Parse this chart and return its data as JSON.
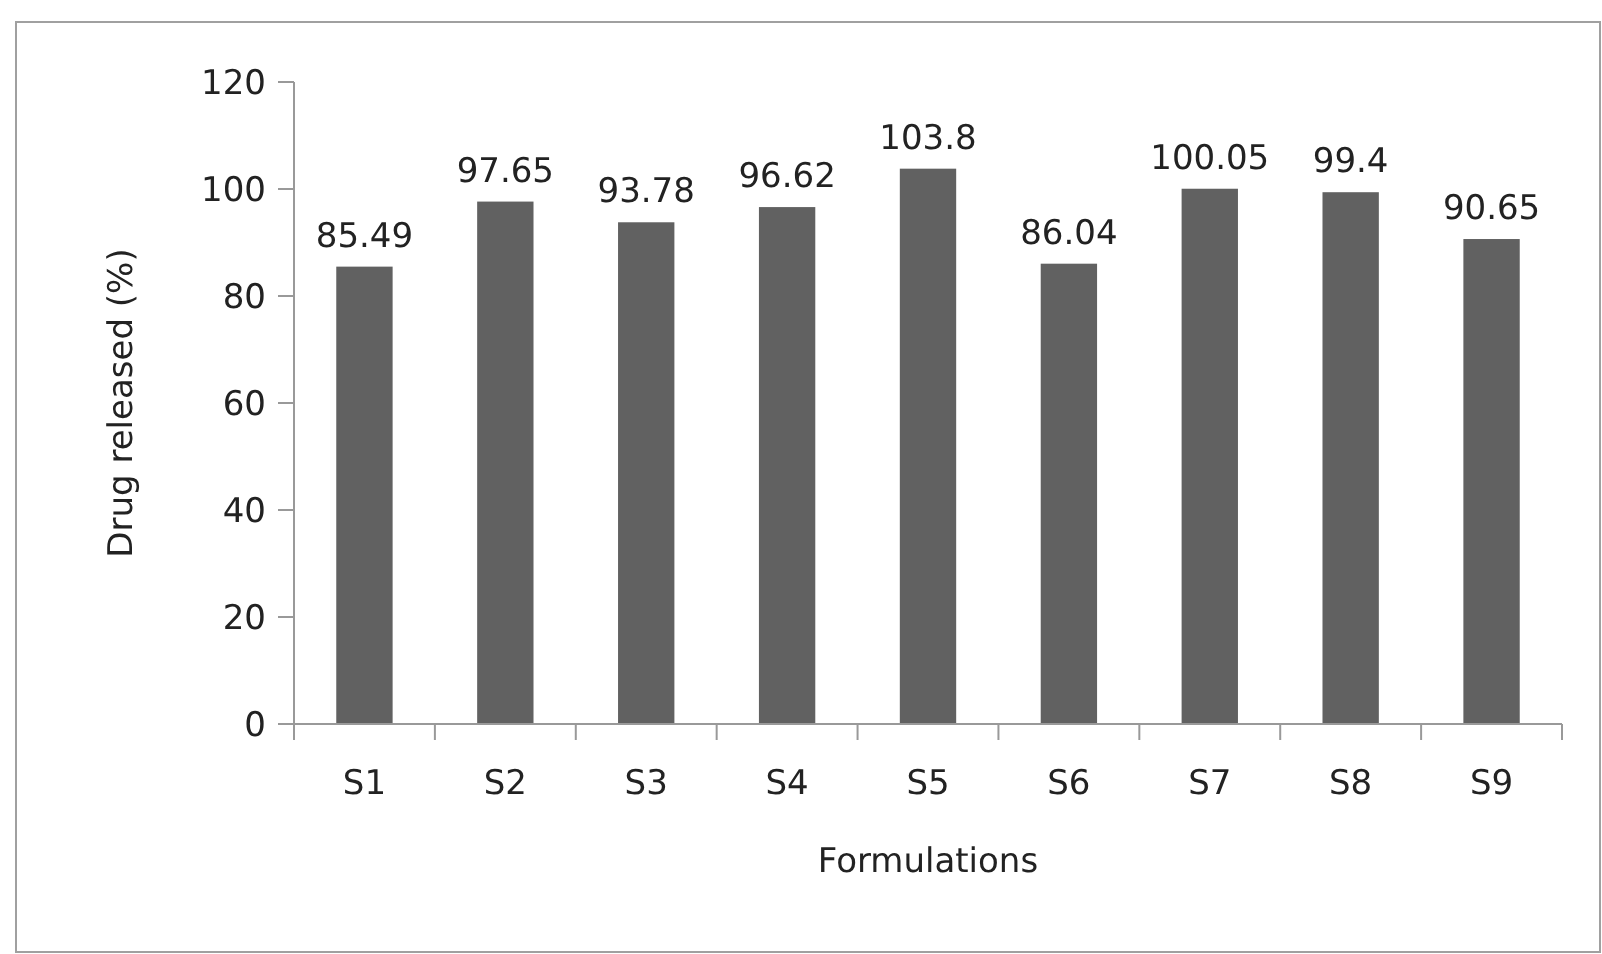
{
  "chart_data": {
    "type": "bar",
    "xlabel": "Formulations",
    "ylabel": "Drug released (%)",
    "categories": [
      "S1",
      "S2",
      "S3",
      "S4",
      "S5",
      "S6",
      "S7",
      "S8",
      "S9"
    ],
    "values": [
      85.49,
      97.65,
      93.78,
      96.62,
      103.8,
      86.04,
      100.05,
      99.4,
      90.65
    ],
    "color": "#616161",
    "ylim": [
      0,
      120
    ],
    "yticks": [
      0,
      20,
      40,
      60,
      80,
      100,
      120
    ],
    "grid": false,
    "data_labels": true
  }
}
